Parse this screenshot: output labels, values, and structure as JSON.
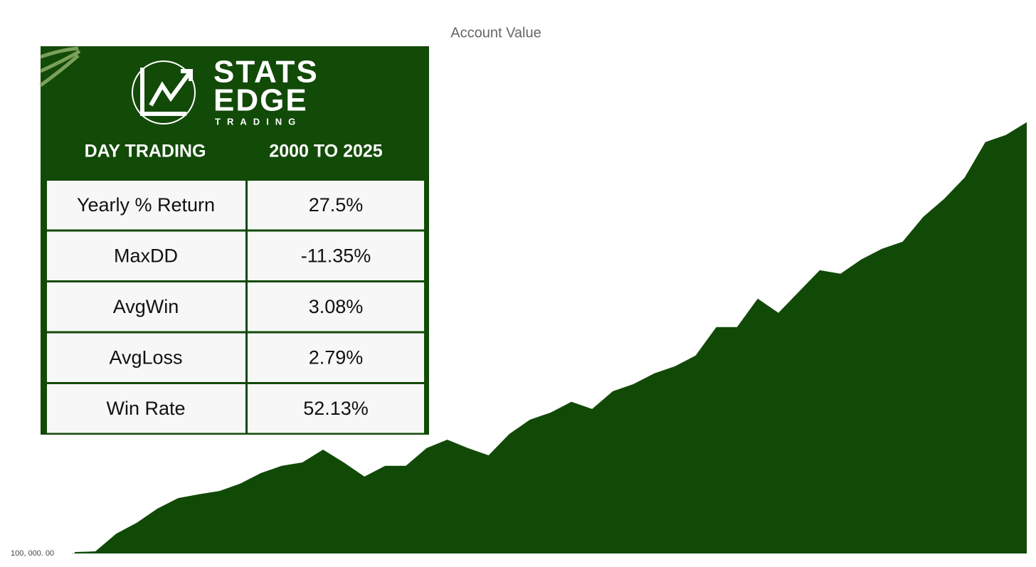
{
  "chart_data": {
    "type": "area",
    "title": "Account Value",
    "color": "#114a07",
    "log_scale": true,
    "ylim": [
      100000,
      178000000
    ],
    "yticks": [
      {
        "value": 100000,
        "label": "100, 000. 00"
      }
    ],
    "values": [
      102000,
      103000,
      132000,
      154000,
      188000,
      218000,
      230000,
      241000,
      267000,
      310000,
      343000,
      360000,
      431000,
      360000,
      295000,
      343000,
      343000,
      440000,
      496000,
      440000,
      398000,
      537000,
      657000,
      726000,
      844000,
      763000,
      980000,
      1083000,
      1259000,
      1391000,
      1617000,
      2413000,
      2413000,
      3603000,
      2950000,
      3981000,
      5375000,
      5115000,
      6247000,
      7261000,
      8019000,
      11400000,
      14630000,
      19770000,
      32590000,
      36040000,
      43130000
    ]
  },
  "panel": {
    "logo": {
      "line1": "STATS",
      "line2": "EDGE",
      "line3": "TRADING"
    },
    "header": [
      "DAY TRADING",
      "2000 TO 2025"
    ],
    "table": {
      "rows": [
        [
          "Yearly % Return",
          "27.5%"
        ],
        [
          "MaxDD",
          "-11.35%"
        ],
        [
          "AvgWin",
          "3.08%"
        ],
        [
          "AvgLoss",
          "2.79%"
        ],
        [
          "Win Rate",
          "52.13%"
        ]
      ]
    }
  }
}
